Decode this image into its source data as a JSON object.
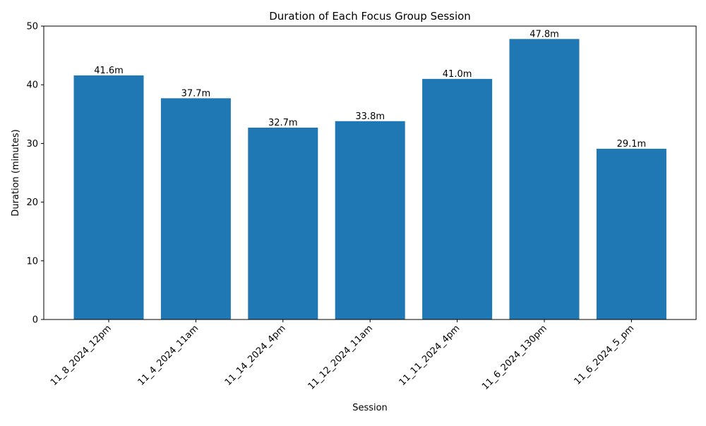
{
  "chart_data": {
    "type": "bar",
    "title": "Duration of Each Focus Group Session",
    "xlabel": "Session",
    "ylabel": "Duration (minutes)",
    "categories": [
      "11_8_2024_12pm",
      "11_4_2024_11am",
      "11_14_2024_4pm",
      "11_12_2024_11am",
      "11_11_2024_4pm",
      "11_6_2024_130pm",
      "11_6_2024_5_pm"
    ],
    "values": [
      41.6,
      37.7,
      32.7,
      33.8,
      41.0,
      47.8,
      29.1
    ],
    "data_labels": [
      "41.6m",
      "37.7m",
      "32.7m",
      "33.8m",
      "41.0m",
      "47.8m",
      "29.1m"
    ],
    "ylim": [
      0,
      50
    ],
    "yticks": [
      0,
      10,
      20,
      30,
      40,
      50
    ],
    "grid": false,
    "bar_color": "#1f77b4"
  }
}
